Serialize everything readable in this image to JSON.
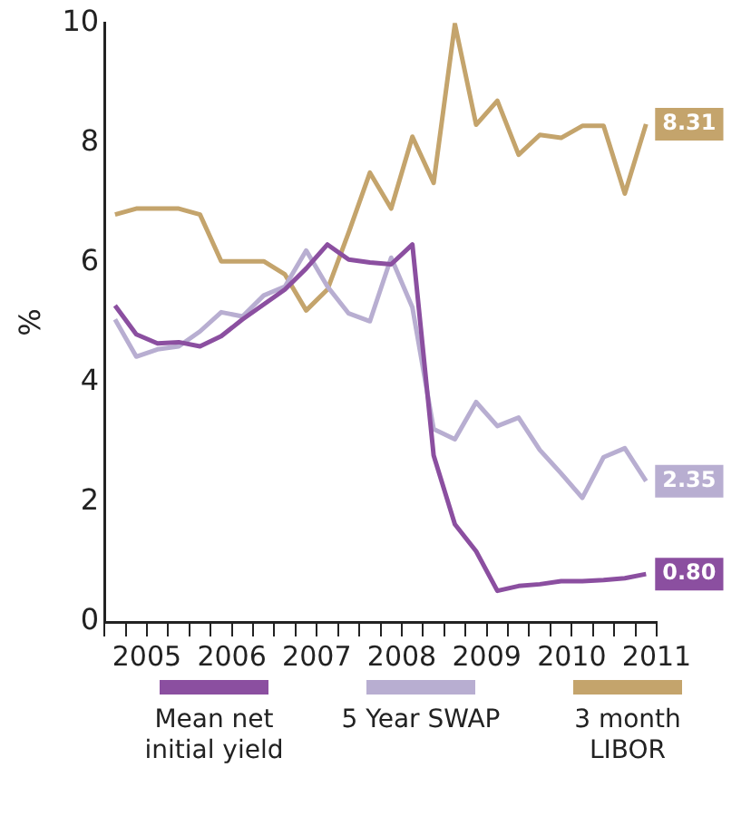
{
  "chart_data": {
    "type": "line",
    "ylabel": "%",
    "legend": "bottom",
    "grid": false,
    "x": [
      2005.125,
      2005.375,
      2005.625,
      2005.875,
      2006.125,
      2006.375,
      2006.625,
      2006.875,
      2007.125,
      2007.375,
      2007.625,
      2007.875,
      2008.125,
      2008.375,
      2008.625,
      2008.875,
      2009.125,
      2009.375,
      2009.625,
      2009.875,
      2010.125,
      2010.375,
      2010.625,
      2010.875,
      2011.125,
      2011.375
    ],
    "xlim": [
      2005,
      2011.5
    ],
    "xticks": [
      {
        "value": 2005,
        "label": null
      },
      {
        "value": 2005.25,
        "label": null
      },
      {
        "value": 2005.5,
        "label": "2005"
      },
      {
        "value": 2005.75,
        "label": null
      },
      {
        "value": 2006,
        "label": null
      },
      {
        "value": 2006.25,
        "label": null
      },
      {
        "value": 2006.5,
        "label": "2006"
      },
      {
        "value": 2006.75,
        "label": null
      },
      {
        "value": 2007,
        "label": null
      },
      {
        "value": 2007.25,
        "label": null
      },
      {
        "value": 2007.5,
        "label": "2007"
      },
      {
        "value": 2007.75,
        "label": null
      },
      {
        "value": 2008,
        "label": null
      },
      {
        "value": 2008.25,
        "label": null
      },
      {
        "value": 2008.5,
        "label": "2008"
      },
      {
        "value": 2008.75,
        "label": null
      },
      {
        "value": 2009,
        "label": null
      },
      {
        "value": 2009.25,
        "label": null
      },
      {
        "value": 2009.5,
        "label": "2009"
      },
      {
        "value": 2009.75,
        "label": null
      },
      {
        "value": 2010,
        "label": null
      },
      {
        "value": 2010.25,
        "label": null
      },
      {
        "value": 2010.5,
        "label": "2010"
      },
      {
        "value": 2010.75,
        "label": null
      },
      {
        "value": 2011,
        "label": null
      },
      {
        "value": 2011.25,
        "label": null
      },
      {
        "value": 2011.5,
        "label": "2011"
      }
    ],
    "ylim": [
      0,
      10
    ],
    "yticks": [
      0,
      2,
      4,
      6,
      8,
      10
    ],
    "series": [
      {
        "name": "Mean net initial yield",
        "color": "#8b4fa0",
        "values": [
          5.28,
          4.8,
          4.65,
          4.67,
          4.6,
          4.77,
          5.05,
          5.3,
          5.55,
          5.9,
          6.3,
          6.05,
          6.0,
          5.97,
          6.3,
          2.78,
          1.63,
          1.18,
          0.52,
          0.6,
          0.63,
          0.68,
          0.68,
          0.7,
          0.73,
          0.8
        ],
        "value_labels": [
          null,
          null,
          null,
          null,
          null,
          null,
          null,
          null,
          null,
          null,
          null,
          null,
          null,
          null,
          null,
          null,
          null,
          null,
          null,
          null,
          null,
          null,
          null,
          null,
          null,
          "0.80"
        ]
      },
      {
        "name": "5 Year SWAP",
        "color": "#b8aed1",
        "values": [
          5.05,
          4.43,
          4.55,
          4.6,
          4.85,
          5.17,
          5.1,
          5.45,
          5.6,
          6.2,
          5.6,
          5.15,
          5.02,
          6.08,
          5.25,
          3.22,
          3.05,
          3.67,
          3.27,
          3.41,
          2.87,
          2.48,
          2.07,
          2.75,
          2.9,
          2.35
        ],
        "value_labels": [
          null,
          null,
          null,
          null,
          null,
          null,
          null,
          null,
          null,
          null,
          null,
          null,
          null,
          null,
          null,
          null,
          null,
          null,
          null,
          null,
          null,
          null,
          null,
          null,
          null,
          "2.35"
        ]
      },
      {
        "name": "3 month LIBOR",
        "color": "#c4a46c",
        "values": [
          6.8,
          6.9,
          6.9,
          6.9,
          6.8,
          6.02,
          6.02,
          6.02,
          5.8,
          5.2,
          5.55,
          6.5,
          7.5,
          6.9,
          8.1,
          7.33,
          9.98,
          8.3,
          8.7,
          7.8,
          8.13,
          8.08,
          8.28,
          8.28,
          7.15,
          8.31
        ],
        "value_labels": [
          null,
          null,
          null,
          null,
          null,
          null,
          null,
          null,
          null,
          null,
          null,
          null,
          null,
          null,
          null,
          null,
          null,
          null,
          null,
          null,
          null,
          null,
          null,
          null,
          null,
          "8.31"
        ]
      }
    ]
  }
}
